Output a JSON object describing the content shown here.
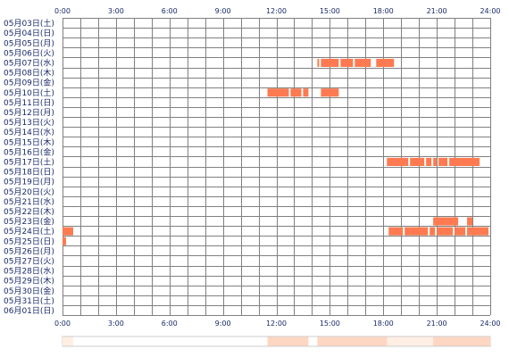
{
  "time_ticks": [
    "0:00",
    "3:00",
    "6:00",
    "9:00",
    "12:00",
    "15:00",
    "18:00",
    "21:00",
    "24:00"
  ],
  "dates": [
    "05月03日(土)",
    "05月04日(日)",
    "05月05日(月)",
    "05月06日(火)",
    "05月07日(水)",
    "05月08日(木)",
    "05月09日(金)",
    "05月10日(土)",
    "05月11日(日)",
    "05月12日(月)",
    "05月13日(火)",
    "05月14日(水)",
    "05月15日(木)",
    "05月16日(金)",
    "05月17日(土)",
    "05月18日(日)",
    "05月19日(月)",
    "05月20日(火)",
    "05月21日(水)",
    "05月22日(木)",
    "05月23日(金)",
    "05月24日(土)",
    "05月25日(日)",
    "05月26日(月)",
    "05月27日(火)",
    "05月28日(水)",
    "05月29日(木)",
    "05月30日(金)",
    "05月31日(土)",
    "06月01日(日)"
  ],
  "colors": {
    "bar": "#ff7a50",
    "grid": "#808080",
    "label": "#1a2a6a",
    "summary_light": "#ffeee4",
    "summary_medium": "#ffd6c2"
  },
  "chart_data": {
    "type": "heatmap",
    "x_range_hours": [
      0,
      24
    ],
    "grid_minor_step_hours": 1,
    "activity": [
      {
        "date": "05月07日(水)",
        "ranges": [
          [
            14.3,
            14.4
          ],
          [
            14.5,
            15.5
          ],
          [
            15.6,
            16.3
          ],
          [
            16.4,
            17.3
          ],
          [
            17.6,
            18.6
          ]
        ]
      },
      {
        "date": "05月10日(土)",
        "ranges": [
          [
            11.5,
            12.7
          ],
          [
            12.8,
            13.4
          ],
          [
            13.5,
            13.8
          ],
          [
            14.5,
            15.5
          ]
        ]
      },
      {
        "date": "05月17日(土)",
        "ranges": [
          [
            18.2,
            19.4
          ],
          [
            19.5,
            20.3
          ],
          [
            20.4,
            20.7
          ],
          [
            20.8,
            21.0
          ],
          [
            21.1,
            21.6
          ],
          [
            21.7,
            23.4
          ]
        ]
      },
      {
        "date": "05月23日(金)",
        "ranges": [
          [
            20.8,
            22.2
          ],
          [
            22.7,
            23.0
          ]
        ]
      },
      {
        "date": "05月24日(土)",
        "ranges": [
          [
            0.0,
            0.6
          ],
          [
            18.3,
            19.1
          ],
          [
            19.2,
            20.5
          ],
          [
            20.6,
            20.9
          ],
          [
            21.0,
            21.9
          ],
          [
            22.0,
            22.6
          ],
          [
            22.7,
            23.9
          ]
        ]
      },
      {
        "date": "05月25日(日)",
        "ranges": [
          [
            0.0,
            0.2
          ]
        ]
      }
    ],
    "summary_bands": [
      {
        "range": [
          0.0,
          0.6
        ],
        "level": "light"
      },
      {
        "range": [
          11.5,
          13.8
        ],
        "level": "medium"
      },
      {
        "range": [
          14.3,
          18.6
        ],
        "level": "medium"
      },
      {
        "range": [
          18.2,
          21.0
        ],
        "level": "light"
      },
      {
        "range": [
          20.8,
          24.0
        ],
        "level": "medium"
      }
    ]
  }
}
